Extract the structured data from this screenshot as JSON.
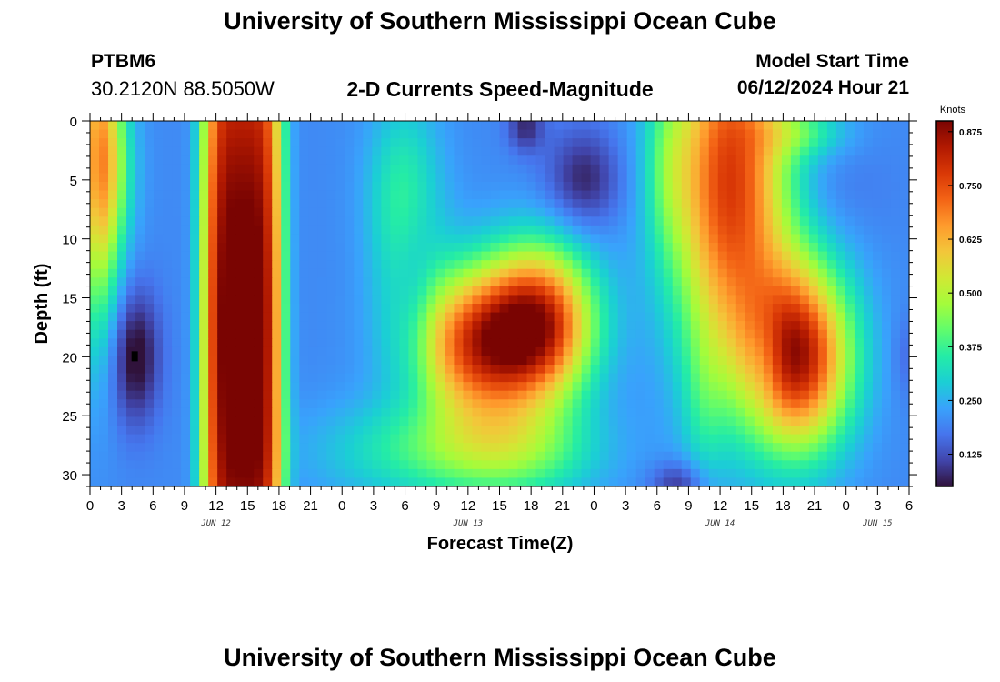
{
  "header": {
    "title": "University of Southern Mississippi Ocean Cube",
    "station": "PTBM6",
    "coordinates": "30.2120N  88.5050W",
    "subtitle": "2-D Currents Speed-Magnitude",
    "model_start_label": "Model Start Time",
    "model_start_time": "06/12/2024 Hour 21"
  },
  "footer": {
    "title": "University of Southern Mississippi Ocean Cube"
  },
  "colors": {
    "scale": [
      "#30123b",
      "#4145ab",
      "#4675ed",
      "#39a2fc",
      "#1bcfd4",
      "#24eca6",
      "#61fc6c",
      "#a4fc3b",
      "#d1e834",
      "#f3c63a",
      "#fe9b2d",
      "#f36315",
      "#d93806",
      "#b11901",
      "#7a0402"
    ]
  },
  "chart_data": {
    "type": "heatmap",
    "title": "2-D Currents Speed-Magnitude",
    "xlabel": "Forecast Time(Z)",
    "ylabel": "Depth (ft)",
    "x_range_hours": [
      0,
      78
    ],
    "y_range_ft": [
      0,
      31
    ],
    "y_reversed": true,
    "x_ticks": [
      "0",
      "3",
      "6",
      "9",
      "12",
      "15",
      "18",
      "21",
      "0",
      "3",
      "6",
      "9",
      "12",
      "15",
      "18",
      "21",
      "0",
      "3",
      "6",
      "9",
      "12",
      "15",
      "18",
      "21",
      "0",
      "3",
      "6"
    ],
    "y_ticks": [
      "0",
      "5",
      "10",
      "15",
      "20",
      "25",
      "30"
    ],
    "day_labels": [
      {
        "label": "JUN 12",
        "hour": 12
      },
      {
        "label": "JUN 13",
        "hour": 36
      },
      {
        "label": "JUN 14",
        "hour": 60
      },
      {
        "label": "JUN 15",
        "hour": 75
      }
    ],
    "colorbar": {
      "title": "Knots",
      "ticks": [
        "0.875",
        "0.750",
        "0.625",
        "0.500",
        "0.375",
        "0.250",
        "0.125"
      ],
      "tick_values": [
        0.875,
        0.75,
        0.625,
        0.5,
        0.375,
        0.25,
        0.125
      ],
      "range": [
        0.05,
        0.9
      ]
    },
    "base_value": 0.2,
    "features": [
      {
        "t": 0.8,
        "d": 3,
        "st": 1.5,
        "sd": 10,
        "amp": 0.42
      },
      {
        "t": 2.5,
        "d": 4,
        "st": 1.5,
        "sd": 5,
        "amp": 0.12
      },
      {
        "t": 4.3,
        "d": 20,
        "st": 1.6,
        "sd": 4,
        "amp": -0.17
      },
      {
        "t": 14.5,
        "d": 18,
        "st": 3.2,
        "sd": 30,
        "amp": 0.75,
        "p": 4
      },
      {
        "t": 30,
        "d": 7,
        "st": 2.5,
        "sd": 6,
        "amp": 0.18
      },
      {
        "t": 31,
        "d": 15,
        "st": 1.5,
        "sd": 6,
        "amp": -0.08
      },
      {
        "t": 37,
        "d": 19,
        "st": 4.5,
        "sd": 4.5,
        "amp": 0.55
      },
      {
        "t": 43,
        "d": 17,
        "st": 3.6,
        "sd": 4.5,
        "amp": 0.52
      },
      {
        "t": 34,
        "d": 28,
        "st": 8,
        "sd": 3,
        "amp": 0.18
      },
      {
        "t": 41,
        "d": 28,
        "st": 5,
        "sd": 3,
        "amp": 0.12
      },
      {
        "t": 47,
        "d": 5,
        "st": 2.5,
        "sd": 3,
        "amp": -0.13
      },
      {
        "t": 41.5,
        "d": 0.5,
        "st": 1.2,
        "sd": 1.5,
        "amp": -0.12
      },
      {
        "t": 61,
        "d": 5,
        "st": 4,
        "sd": 11,
        "amp": 0.58
      },
      {
        "t": 55,
        "d": 4,
        "st": 1.5,
        "sd": 5,
        "amp": 0.1
      },
      {
        "t": 56,
        "d": 31,
        "st": 1.8,
        "sd": 1.5,
        "amp": -0.12
      },
      {
        "t": 58.5,
        "d": 24,
        "st": 1.5,
        "sd": 5,
        "amp": 0.08
      },
      {
        "t": 64.5,
        "d": 20,
        "st": 1.2,
        "sd": 3,
        "amp": -0.08
      },
      {
        "t": 67.5,
        "d": 20,
        "st": 3.5,
        "sd": 5.5,
        "amp": 0.62
      },
      {
        "t": 68,
        "d": 1,
        "st": 3,
        "sd": 1.5,
        "amp": 0.12
      },
      {
        "t": 70,
        "d": 6,
        "st": 4,
        "sd": 3,
        "amp": -0.03
      },
      {
        "t": 77.5,
        "d": 20,
        "st": 0.8,
        "sd": 2.5,
        "amp": -0.04
      }
    ]
  }
}
